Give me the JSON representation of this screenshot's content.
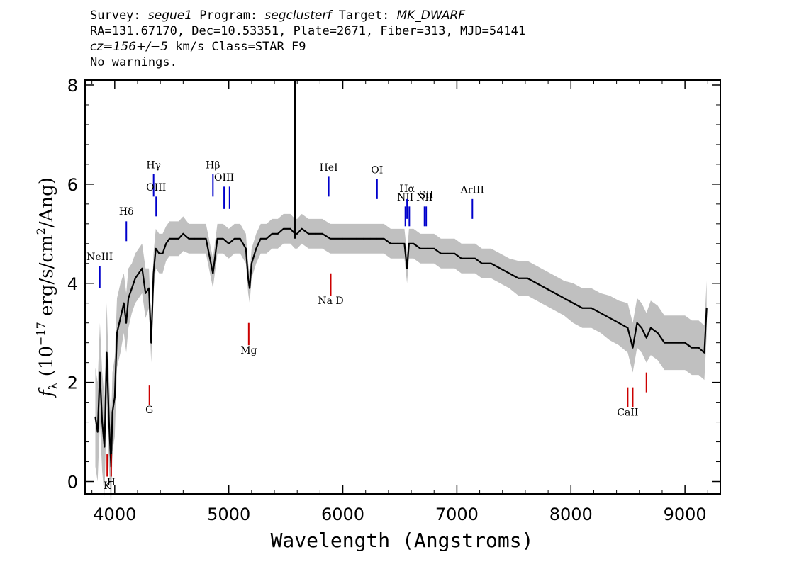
{
  "header": {
    "survey_label": "Survey: ",
    "survey": "segue1",
    "program_label": " Program: ",
    "program": "segclusterf",
    "target_label": " Target: ",
    "target": "MK_DWARF",
    "line2": "RA=131.67170, Dec=10.53351, Plate=2671, Fiber=313, MJD=54141",
    "cz": "cz=156+/−5",
    "cz_rest": " km/s Class=STAR F9",
    "line4": "No warnings."
  },
  "chart_data": {
    "type": "line",
    "xlabel": "Wavelength (Angstroms)",
    "ylabel_prefix": "f",
    "ylabel_sub": "λ",
    "ylabel_main": " (10",
    "ylabel_exp": "−17",
    "ylabel_units": " erg/s/cm",
    "ylabel_sq": "2",
    "ylabel_end": "/Ang)",
    "xlim": [
      3740,
      9310
    ],
    "ylim": [
      -0.25,
      8.1
    ],
    "x_ticks": [
      "4000",
      "5000",
      "6000",
      "7000",
      "8000",
      "9000"
    ],
    "y_ticks": [
      "0",
      "2",
      "4",
      "6",
      "8"
    ],
    "series": [
      {
        "color": "#000000",
        "error_color": "#c0c0c0",
        "x": [
          3830,
          3850,
          3870,
          3890,
          3910,
          3930,
          3950,
          3968,
          3980,
          4000,
          4020,
          4050,
          4080,
          4101,
          4120,
          4150,
          4180,
          4210,
          4240,
          4270,
          4300,
          4320,
          4340,
          4360,
          4390,
          4420,
          4450,
          4480,
          4520,
          4560,
          4600,
          4650,
          4700,
          4750,
          4800,
          4861,
          4900,
          4950,
          5000,
          5050,
          5100,
          5150,
          5170,
          5183,
          5200,
          5240,
          5280,
          5330,
          5380,
          5430,
          5480,
          5540,
          5580,
          5600,
          5640,
          5700,
          5760,
          5820,
          5890,
          5950,
          6000,
          6060,
          6120,
          6180,
          6240,
          6300,
          6360,
          6420,
          6480,
          6540,
          6563,
          6580,
          6620,
          6680,
          6740,
          6800,
          6860,
          6920,
          6980,
          7040,
          7100,
          7160,
          7220,
          7300,
          7380,
          7460,
          7540,
          7620,
          7700,
          7780,
          7860,
          7940,
          8020,
          8100,
          8180,
          8260,
          8340,
          8420,
          8498,
          8542,
          8580,
          8620,
          8662,
          8700,
          8760,
          8820,
          8880,
          8940,
          9000,
          9060,
          9120,
          9170,
          9190
        ],
        "y": [
          1.3,
          1.0,
          2.2,
          1.2,
          0.7,
          2.6,
          1.2,
          0.3,
          1.4,
          1.7,
          3.0,
          3.3,
          3.6,
          3.2,
          3.7,
          3.9,
          4.1,
          4.2,
          4.3,
          3.8,
          3.9,
          2.8,
          4.2,
          4.7,
          4.6,
          4.6,
          4.8,
          4.9,
          4.9,
          4.9,
          5.0,
          4.9,
          4.9,
          4.9,
          4.9,
          4.2,
          4.9,
          4.9,
          4.8,
          4.9,
          4.9,
          4.7,
          4.1,
          3.9,
          4.4,
          4.7,
          4.9,
          4.9,
          5.0,
          5.0,
          5.1,
          5.1,
          5.0,
          5.0,
          5.1,
          5.0,
          5.0,
          5.0,
          4.9,
          4.9,
          4.9,
          4.9,
          4.9,
          4.9,
          4.9,
          4.9,
          4.9,
          4.8,
          4.8,
          4.8,
          4.3,
          4.8,
          4.8,
          4.7,
          4.7,
          4.7,
          4.6,
          4.6,
          4.6,
          4.5,
          4.5,
          4.5,
          4.4,
          4.4,
          4.3,
          4.2,
          4.1,
          4.1,
          4.0,
          3.9,
          3.8,
          3.7,
          3.6,
          3.5,
          3.5,
          3.4,
          3.3,
          3.2,
          3.1,
          2.7,
          3.2,
          3.1,
          2.9,
          3.1,
          3.0,
          2.8,
          2.8,
          2.8,
          2.8,
          2.7,
          2.7,
          2.6,
          3.5
        ],
        "error": [
          1.0,
          1.0,
          1.0,
          1.0,
          1.0,
          1.0,
          0.9,
          0.9,
          0.8,
          0.8,
          0.7,
          0.7,
          0.6,
          0.6,
          0.6,
          0.5,
          0.5,
          0.5,
          0.5,
          0.5,
          0.4,
          0.4,
          0.4,
          0.4,
          0.4,
          0.4,
          0.35,
          0.35,
          0.35,
          0.35,
          0.35,
          0.3,
          0.3,
          0.3,
          0.3,
          0.3,
          0.3,
          0.3,
          0.3,
          0.3,
          0.3,
          0.3,
          0.3,
          0.3,
          0.3,
          0.3,
          0.3,
          0.3,
          0.3,
          0.3,
          0.3,
          0.3,
          0.3,
          0.3,
          0.3,
          0.3,
          0.3,
          0.3,
          0.3,
          0.3,
          0.3,
          0.3,
          0.3,
          0.3,
          0.3,
          0.3,
          0.3,
          0.3,
          0.3,
          0.3,
          0.3,
          0.3,
          0.3,
          0.3,
          0.3,
          0.3,
          0.3,
          0.3,
          0.3,
          0.3,
          0.3,
          0.3,
          0.3,
          0.3,
          0.3,
          0.3,
          0.35,
          0.35,
          0.35,
          0.35,
          0.35,
          0.35,
          0.4,
          0.4,
          0.4,
          0.4,
          0.45,
          0.45,
          0.5,
          0.5,
          0.5,
          0.5,
          0.5,
          0.55,
          0.55,
          0.55,
          0.55,
          0.55,
          0.55,
          0.55,
          0.55,
          0.55,
          0.55
        ]
      }
    ],
    "spike": {
      "x": 5578,
      "y": 8.1
    },
    "emission_lines": [
      {
        "label": "NeIII",
        "x": 3869,
        "y0": 3.9,
        "y1": 4.35,
        "label_y": 4.47
      },
      {
        "label": "Hδ",
        "x": 4102,
        "y0": 4.85,
        "y1": 5.25,
        "label_y": 5.38
      },
      {
        "label": "Hγ",
        "x": 4341,
        "y0": 5.75,
        "y1": 6.2,
        "label_y": 6.32
      },
      {
        "label": "OIII",
        "x": 4363,
        "y0": 5.35,
        "y1": 5.75,
        "label_y": 5.87
      },
      {
        "label": "Hβ",
        "x": 4861,
        "y0": 5.75,
        "y1": 6.2,
        "label_y": 6.32
      },
      {
        "label": "OIII",
        "x": 4959,
        "y0": 5.5,
        "y1": 5.95,
        "label_y": 6.07
      },
      {
        "label": "",
        "x": 5007,
        "y0": 5.5,
        "y1": 5.95,
        "label_y": 6.07
      },
      {
        "label": "HeI",
        "x": 5876,
        "y0": 5.75,
        "y1": 6.15,
        "label_y": 6.27
      },
      {
        "label": "OI",
        "x": 6300,
        "y0": 5.7,
        "y1": 6.1,
        "label_y": 6.22
      },
      {
        "label": "NII",
        "x": 6548,
        "y0": 5.15,
        "y1": 5.55,
        "label_y": 5.67
      },
      {
        "label": "Hα",
        "x": 6563,
        "y0": 5.3,
        "y1": 5.7,
        "label_y": 5.84
      },
      {
        "label": "",
        "x": 6583,
        "y0": 5.15,
        "y1": 5.55,
        "label_y": 5.67
      },
      {
        "label": "NII",
        "x": 6716,
        "y0": 5.15,
        "y1": 5.55,
        "label_y": 5.67
      },
      {
        "label": "SII",
        "x": 6731,
        "y0": 5.15,
        "y1": 5.55,
        "label_y": 5.72
      },
      {
        "label": "ArIII",
        "x": 7136,
        "y0": 5.3,
        "y1": 5.7,
        "label_y": 5.82
      }
    ],
    "absorption_lines": [
      {
        "label": "K",
        "x": 3934,
        "y0": 0.55,
        "y1": 0.1,
        "label_y": -0.15
      },
      {
        "label": "H",
        "x": 3969,
        "y0": 0.55,
        "y1": 0.1,
        "label_y": -0.08
      },
      {
        "label": "G",
        "x": 4304,
        "y0": 1.95,
        "y1": 1.55,
        "label_y": 1.38
      },
      {
        "label": "Mg",
        "x": 5175,
        "y0": 3.2,
        "y1": 2.75,
        "label_y": 2.58
      },
      {
        "label": "Na D",
        "x": 5894,
        "y0": 4.2,
        "y1": 3.75,
        "label_y": 3.58
      },
      {
        "label": "CaII",
        "x": 8498,
        "y0": 1.9,
        "y1": 1.5,
        "label_y": 1.33
      },
      {
        "label": "",
        "x": 8542,
        "y0": 1.9,
        "y1": 1.5,
        "label_y": 1.33
      },
      {
        "label": "",
        "x": 8662,
        "y0": 2.2,
        "y1": 1.8,
        "label_y": 1.63
      }
    ],
    "emission_color": "#0000cc",
    "absorption_color": "#cc0000"
  }
}
